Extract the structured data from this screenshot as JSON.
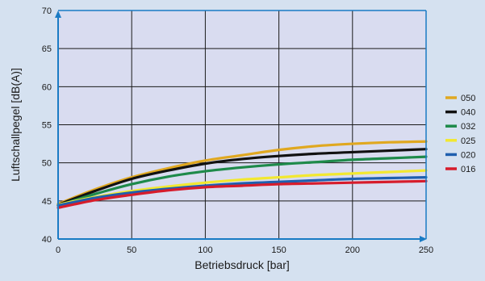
{
  "chart_data": {
    "type": "line",
    "title": "",
    "xlabel": "Betriebsdruck [bar]",
    "ylabel": "Luftschallpegel [dB(A)]",
    "xlim": [
      0,
      250
    ],
    "ylim": [
      40,
      70
    ],
    "xticks": [
      0,
      50,
      100,
      150,
      200,
      250
    ],
    "yticks": [
      40,
      45,
      50,
      55,
      60,
      65,
      70
    ],
    "grid": true,
    "legend_position": "right",
    "plot_background": "#d9dcf0",
    "axis_color": "#1a7bc4",
    "x": [
      0,
      25,
      50,
      75,
      100,
      125,
      150,
      175,
      200,
      225,
      250
    ],
    "series": [
      {
        "name": "050",
        "color": "#e0a820",
        "values": [
          44.6,
          46.5,
          48.1,
          49.3,
          50.3,
          51.0,
          51.7,
          52.2,
          52.5,
          52.7,
          52.8
        ]
      },
      {
        "name": "040",
        "color": "#111111",
        "values": [
          44.5,
          46.3,
          47.9,
          49.0,
          49.9,
          50.5,
          50.9,
          51.2,
          51.4,
          51.6,
          51.8
        ]
      },
      {
        "name": "032",
        "color": "#1e8a4a",
        "values": [
          44.4,
          45.9,
          47.2,
          48.2,
          48.9,
          49.4,
          49.8,
          50.1,
          50.4,
          50.6,
          50.8
        ]
      },
      {
        "name": "025",
        "color": "#f2e830",
        "values": [
          44.5,
          45.5,
          46.3,
          46.9,
          47.4,
          47.8,
          48.1,
          48.4,
          48.6,
          48.8,
          49.0
        ]
      },
      {
        "name": "020",
        "color": "#1f5fae",
        "values": [
          44.4,
          45.4,
          46.1,
          46.6,
          47.0,
          47.3,
          47.5,
          47.7,
          47.9,
          48.0,
          48.1
        ]
      },
      {
        "name": "016",
        "color": "#d61c2c",
        "values": [
          44.1,
          45.1,
          45.8,
          46.4,
          46.8,
          47.0,
          47.2,
          47.3,
          47.4,
          47.5,
          47.6
        ]
      }
    ]
  }
}
